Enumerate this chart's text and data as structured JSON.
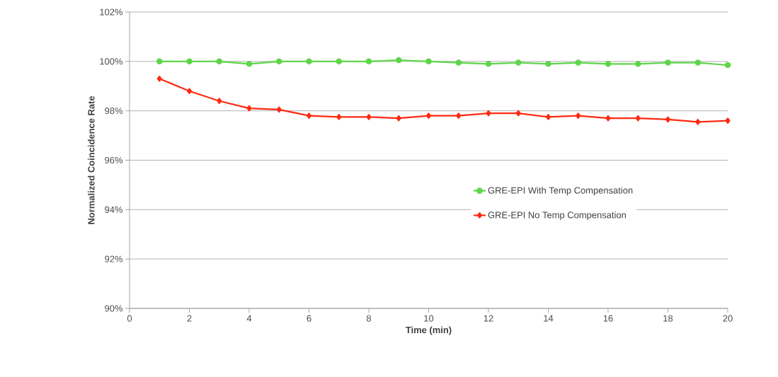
{
  "chart_data": {
    "type": "line",
    "xlabel": "Time (min)",
    "ylabel": "Normalized Coincidence Rate",
    "x": [
      1,
      2,
      3,
      4,
      5,
      6,
      7,
      8,
      9,
      10,
      11,
      12,
      13,
      14,
      15,
      16,
      17,
      18,
      19,
      20
    ],
    "series": [
      {
        "name": "GRE-EPI With Temp Compensation",
        "color": "#5ed64a",
        "marker": "circle",
        "values": [
          100,
          100,
          100,
          99.9,
          100,
          100,
          100,
          100,
          100.05,
          100,
          99.95,
          99.9,
          99.95,
          99.9,
          99.95,
          99.9,
          99.9,
          99.95,
          99.95,
          99.85
        ]
      },
      {
        "name": "GRE-EPI No Temp Compensation",
        "color": "#ff2a12",
        "marker": "diamond",
        "values": [
          99.3,
          98.8,
          98.4,
          98.1,
          98.05,
          97.8,
          97.75,
          97.75,
          97.7,
          97.8,
          97.8,
          97.9,
          97.9,
          97.75,
          97.8,
          97.7,
          97.7,
          97.65,
          97.55,
          97.6
        ]
      }
    ],
    "xlim": [
      0,
      20
    ],
    "xticks": [
      0,
      2,
      4,
      6,
      8,
      10,
      12,
      14,
      16,
      18,
      20
    ],
    "ylim": [
      90,
      102
    ],
    "yticks": [
      {
        "value": 90,
        "label": "90%"
      },
      {
        "value": 92,
        "label": "92%"
      },
      {
        "value": 94,
        "label": "94%"
      },
      {
        "value": 96,
        "label": "96%"
      },
      {
        "value": 98,
        "label": "98%"
      },
      {
        "value": 100,
        "label": "100%"
      },
      {
        "value": 102,
        "label": "102%"
      }
    ],
    "grid": "y",
    "legend": "right",
    "line_style": "solid"
  }
}
